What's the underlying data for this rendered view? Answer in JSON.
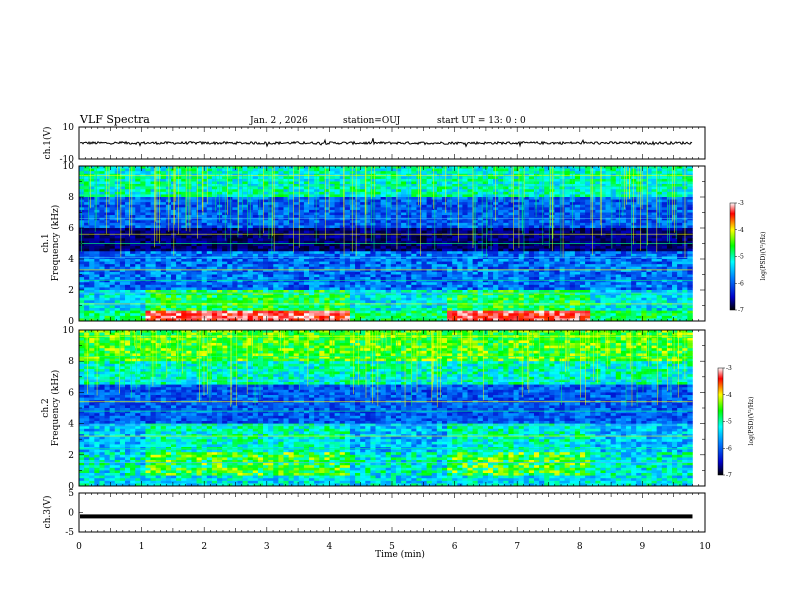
{
  "chart_data": {
    "type": "spectrogram",
    "title": "VLF Spectra",
    "header": {
      "date": "Jan. 2 , 2026",
      "station": "station=OUJ",
      "start_time": "start UT = 13: 0 : 0"
    },
    "x_axis": {
      "label": "Time (min)",
      "range": [
        0,
        10
      ],
      "ticks": [
        "0",
        "1",
        "2",
        "3",
        "4",
        "5",
        "6",
        "7",
        "8",
        "9",
        "10"
      ]
    },
    "panels": [
      {
        "name": "ch1-waveform",
        "type": "line",
        "ylabel": "ch.1(V)",
        "yrange": [
          -10,
          10
        ],
        "ytick_labels": [
          "10",
          "-10"
        ]
      },
      {
        "name": "ch1-spectrogram",
        "type": "heatmap",
        "ylabel_top": "ch.1",
        "ylabel": "Frequency (kHz)",
        "yrange": [
          0,
          10
        ],
        "ytick_labels": [
          "0",
          "2",
          "4",
          "6",
          "8",
          "10"
        ],
        "colorbar": {
          "label": "log(PSD)(V²/Hz)",
          "range": [
            -7,
            -3
          ],
          "tick_labels": [
            "-3",
            "-4",
            "-5",
            "-6",
            "-7"
          ]
        }
      },
      {
        "name": "ch2-spectrogram",
        "type": "heatmap",
        "ylabel_top": "ch.2",
        "ylabel": "Frequency (kHz)",
        "yrange": [
          0,
          10
        ],
        "ytick_labels": [
          "0",
          "2",
          "4",
          "6",
          "8",
          "10"
        ],
        "colorbar": {
          "label": "log(PSD)(V²/Hz)",
          "range": [
            -7,
            -3
          ],
          "tick_labels": [
            "-3",
            "-4",
            "-5",
            "-6",
            "-7"
          ]
        }
      },
      {
        "name": "ch3-waveform",
        "type": "line",
        "ylabel": "ch.3(V)",
        "yrange": [
          -5,
          5
        ],
        "ytick_labels": [
          "5",
          "0",
          "-5"
        ],
        "constant_value": -1
      }
    ],
    "data_end_min": 9.8,
    "regime_change_min": [
      1.05,
      4.3,
      5.8,
      8.1
    ],
    "colors": {
      "background": "#000080",
      "colormap": [
        "#000080",
        "#0000ff",
        "#00ffff",
        "#00ff00",
        "#ffff00",
        "#ff0000",
        "#ffffff"
      ]
    }
  }
}
